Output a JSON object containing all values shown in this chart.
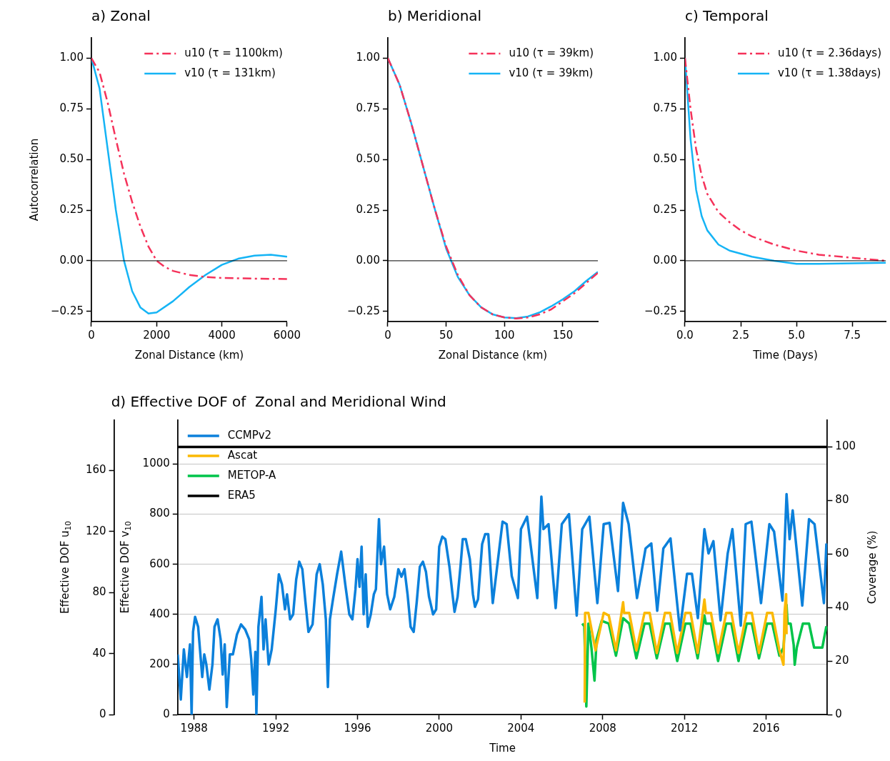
{
  "chart_data": [
    {
      "type": "line",
      "title": "a) Zonal",
      "xlabel": "Zonal Distance (km)",
      "ylabel": "Autocorrelation",
      "xlim": [
        0,
        6000
      ],
      "xticks": [
        0,
        2000,
        4000,
        6000
      ],
      "ylim": [
        -0.3,
        1.1
      ],
      "yticks": [
        {
          "value": -0.25,
          "label": "−0.25"
        },
        {
          "value": 0,
          "label": "0.00"
        },
        {
          "value": 0.25,
          "label": "0.25"
        },
        {
          "value": 0.5,
          "label": "0.50"
        },
        {
          "value": 0.75,
          "label": "0.75"
        },
        {
          "value": 1,
          "label": "1.00"
        }
      ],
      "legend": "top right",
      "marker": "none",
      "ref_lines": [
        {
          "axis": "y",
          "value": 0,
          "color": "#000000"
        }
      ],
      "series": [
        {
          "name": "u10 (τ = 1100km)",
          "color": "#f5325a",
          "line_style": "dashed",
          "x": [
            0,
            250,
            500,
            750,
            1000,
            1250,
            1500,
            1750,
            2000,
            2250,
            2500,
            3000,
            3500,
            4000,
            5000,
            6000
          ],
          "values": [
            1.0,
            0.93,
            0.78,
            0.6,
            0.43,
            0.29,
            0.17,
            0.07,
            0.0,
            -0.03,
            -0.05,
            -0.07,
            -0.08,
            -0.085,
            -0.088,
            -0.09
          ]
        },
        {
          "name": "v10 (τ = 131km)",
          "color": "#15b4f5",
          "line_style": "solid",
          "x": [
            0,
            250,
            500,
            750,
            1000,
            1250,
            1500,
            1750,
            2000,
            2500,
            3000,
            3500,
            4000,
            4500,
            5000,
            5500,
            6000
          ],
          "values": [
            1.0,
            0.85,
            0.55,
            0.25,
            0.0,
            -0.15,
            -0.23,
            -0.26,
            -0.255,
            -0.2,
            -0.13,
            -0.07,
            -0.02,
            0.01,
            0.025,
            0.03,
            0.02
          ]
        }
      ]
    },
    {
      "type": "line",
      "title": "b) Meridional",
      "xlabel": "Zonal Distance (km)",
      "xlim": [
        0,
        180
      ],
      "xticks": [
        0,
        50,
        100,
        150
      ],
      "ylim": [
        -0.3,
        1.1
      ],
      "yticks": [
        {
          "value": -0.25,
          "label": "−0.25"
        },
        {
          "value": 0,
          "label": "0.00"
        },
        {
          "value": 0.25,
          "label": "0.25"
        },
        {
          "value": 0.5,
          "label": "0.50"
        },
        {
          "value": 0.75,
          "label": "0.75"
        },
        {
          "value": 1,
          "label": "1.00"
        }
      ],
      "legend": "top right",
      "marker": "none",
      "ref_lines": [
        {
          "axis": "y",
          "value": 0,
          "color": "#000000"
        }
      ],
      "series": [
        {
          "name": "u10 (τ = 39km)",
          "color": "#f5325a",
          "line_style": "dashed",
          "x": [
            0,
            10,
            20,
            30,
            40,
            50,
            60,
            70,
            80,
            90,
            100,
            110,
            120,
            130,
            140,
            150,
            160,
            170,
            180
          ],
          "values": [
            1.0,
            0.87,
            0.68,
            0.47,
            0.26,
            0.07,
            -0.07,
            -0.17,
            -0.23,
            -0.265,
            -0.28,
            -0.285,
            -0.28,
            -0.265,
            -0.24,
            -0.2,
            -0.16,
            -0.11,
            -0.06
          ]
        },
        {
          "name": "v10 (τ = 39km)",
          "color": "#15b4f5",
          "line_style": "solid",
          "x": [
            0,
            10,
            20,
            30,
            40,
            50,
            60,
            70,
            80,
            90,
            100,
            110,
            120,
            130,
            140,
            150,
            160,
            170,
            180
          ],
          "values": [
            1.0,
            0.87,
            0.68,
            0.47,
            0.26,
            0.06,
            -0.08,
            -0.17,
            -0.23,
            -0.265,
            -0.28,
            -0.283,
            -0.275,
            -0.255,
            -0.225,
            -0.19,
            -0.15,
            -0.1,
            -0.055
          ]
        }
      ]
    },
    {
      "type": "line",
      "title": "c) Temporal",
      "xlabel": "Time (Days)",
      "xlim": [
        0,
        9
      ],
      "xticks": [
        {
          "value": 0,
          "label": "0.0"
        },
        {
          "value": 2.5,
          "label": "2.5"
        },
        {
          "value": 5,
          "label": "5.0"
        },
        {
          "value": 7.5,
          "label": "7.5"
        }
      ],
      "ylim": [
        -0.3,
        1.1
      ],
      "yticks": [
        {
          "value": -0.25,
          "label": "−0.25"
        },
        {
          "value": 0,
          "label": "0.00"
        },
        {
          "value": 0.25,
          "label": "0.25"
        },
        {
          "value": 0.5,
          "label": "0.50"
        },
        {
          "value": 0.75,
          "label": "0.75"
        },
        {
          "value": 1,
          "label": "1.00"
        }
      ],
      "legend": "top right",
      "marker": "none",
      "ref_lines": [
        {
          "axis": "y",
          "value": 0,
          "color": "#000000"
        }
      ],
      "series": [
        {
          "name": "u10 (τ = 2.36days)",
          "color": "#f5325a",
          "line_style": "dashed",
          "x": [
            0,
            0.25,
            0.5,
            0.75,
            1,
            1.5,
            2,
            2.5,
            3,
            4,
            5,
            6,
            7,
            8,
            9
          ],
          "values": [
            1.0,
            0.75,
            0.55,
            0.42,
            0.33,
            0.24,
            0.19,
            0.15,
            0.12,
            0.08,
            0.05,
            0.03,
            0.02,
            0.01,
            0.0
          ]
        },
        {
          "name": "v10 (τ = 1.38days)",
          "color": "#15b4f5",
          "line_style": "solid",
          "x": [
            0,
            0.25,
            0.5,
            0.75,
            1,
            1.5,
            2,
            3,
            4,
            5,
            6,
            9
          ],
          "values": [
            1.0,
            0.6,
            0.35,
            0.22,
            0.15,
            0.08,
            0.05,
            0.02,
            0.0,
            -0.015,
            -0.015,
            -0.01
          ]
        }
      ]
    },
    {
      "type": "line",
      "title": "d) Effective DOF of  Zonal and Meridional Wind",
      "xlabel": "Time",
      "ylabel": "Effective DOF v$_{10}$",
      "y2label": "Coverage (%)",
      "y3label": "Effective DOF u$_{10}$",
      "xlim": [
        1987.2,
        2019.0
      ],
      "xticks": [
        1988,
        1992,
        1996,
        2000,
        2004,
        2008,
        2012,
        2016
      ],
      "ylim": [
        0,
        1175
      ],
      "yticks": [
        0,
        200,
        400,
        600,
        800,
        1000
      ],
      "y2lim": [
        0,
        110
      ],
      "y2ticks": [
        0,
        20,
        40,
        60,
        80,
        100
      ],
      "y3lim": [
        0,
        193
      ],
      "y3ticks": [
        0,
        40,
        80,
        120,
        160
      ],
      "grid": "y",
      "legend": "top left",
      "marker": "none",
      "series": [
        {
          "name": "CCMPv2",
          "color": "#0b80db",
          "x": [
            1987.2,
            1987.35,
            1987.5,
            1987.65,
            1987.8,
            1987.88,
            1987.95,
            1988.05,
            1988.2,
            1988.3,
            1988.4,
            1988.5,
            1988.6,
            1988.75,
            1988.9,
            1989.0,
            1989.15,
            1989.3,
            1989.4,
            1989.5,
            1989.6,
            1989.75,
            1989.9,
            1990.1,
            1990.3,
            1990.5,
            1990.7,
            1990.8,
            1990.9,
            1991.0,
            1991.05,
            1991.15,
            1991.3,
            1991.4,
            1991.5,
            1991.65,
            1991.8,
            1992.0,
            1992.15,
            1992.3,
            1992.45,
            1992.55,
            1992.7,
            1992.85,
            1993.0,
            1993.15,
            1993.3,
            1993.45,
            1993.6,
            1993.8,
            1994.0,
            1994.15,
            1994.3,
            1994.45,
            1994.55,
            1994.65,
            1994.8,
            1995.0,
            1995.2,
            1995.4,
            1995.6,
            1995.75,
            1995.9,
            1996.0,
            1996.1,
            1996.2,
            1996.3,
            1996.4,
            1996.5,
            1996.65,
            1996.8,
            1996.9,
            1997.0,
            1997.05,
            1997.15,
            1997.3,
            1997.45,
            1997.6,
            1997.8,
            1998.0,
            1998.15,
            1998.3,
            1998.45,
            1998.6,
            1998.75,
            1998.9,
            1999.05,
            1999.2,
            1999.35,
            1999.5,
            1999.7,
            1999.85,
            2000.0,
            2000.15,
            2000.3,
            2000.5,
            2000.65,
            2000.75,
            2000.9,
            2001.05,
            2001.15,
            2001.3,
            2001.5,
            2001.65,
            2001.75,
            2001.9,
            2002.1,
            2002.25,
            2002.4,
            2002.62,
            2003.1,
            2003.3,
            2003.55,
            2003.85,
            2004.0,
            2004.3,
            2004.8,
            2005.0,
            2005.1,
            2005.35,
            2005.7,
            2006.0,
            2006.35,
            2006.73,
            2007.0,
            2007.35,
            2007.74,
            2008.05,
            2008.34,
            2008.75,
            2009.0,
            2009.27,
            2009.68,
            2010.1,
            2010.38,
            2010.67,
            2010.97,
            2011.32,
            2011.78,
            2012.13,
            2012.37,
            2012.66,
            2012.98,
            2013.18,
            2013.42,
            2013.77,
            2014.12,
            2014.35,
            2014.76,
            2015.0,
            2015.28,
            2015.75,
            2016.16,
            2016.39,
            2016.8,
            2017.0,
            2017.15,
            2017.3,
            2017.77,
            2018.1,
            2018.37,
            2018.83,
            2018.95
          ],
          "values": [
            240,
            60,
            260,
            150,
            280,
            0,
            330,
            390,
            350,
            250,
            150,
            240,
            200,
            100,
            200,
            350,
            380,
            300,
            160,
            280,
            30,
            240,
            240,
            320,
            360,
            340,
            300,
            220,
            80,
            250,
            0,
            350,
            470,
            260,
            380,
            200,
            260,
            420,
            560,
            520,
            420,
            480,
            380,
            400,
            540,
            610,
            580,
            450,
            330,
            360,
            560,
            600,
            520,
            380,
            110,
            380,
            460,
            560,
            650,
            520,
            400,
            380,
            500,
            620,
            510,
            670,
            400,
            560,
            350,
            400,
            480,
            500,
            690,
            780,
            600,
            670,
            480,
            420,
            470,
            580,
            550,
            580,
            480,
            350,
            330,
            450,
            590,
            610,
            570,
            470,
            400,
            420,
            670,
            710,
            700,
            590,
            480,
            410,
            470,
            600,
            700,
            700,
            620,
            480,
            430,
            460,
            680,
            720,
            720,
            445,
            770,
            760,
            553,
            465,
            740,
            790,
            465,
            870,
            740,
            760,
            425,
            760,
            800,
            395,
            740,
            790,
            445,
            760,
            765,
            493,
            845,
            760,
            465,
            663,
            683,
            414,
            663,
            703,
            336,
            562,
            562,
            385,
            740,
            643,
            692,
            376,
            643,
            740,
            355,
            760,
            770,
            445,
            760,
            730,
            455,
            880,
            700,
            815,
            435,
            780,
            760,
            445,
            683
          ]
        },
        {
          "name": "Ascat",
          "color": "#fbb904",
          "axis": "y2",
          "x": [
            2007.12,
            2007.14,
            2007.3,
            2007.65,
            2008.05,
            2008.3,
            2008.65,
            2009.0,
            2009.05,
            2009.3,
            2009.65,
            2010.05,
            2010.3,
            2010.65,
            2011.05,
            2011.3,
            2011.65,
            2012.05,
            2012.3,
            2012.65,
            2012.98,
            2013.05,
            2013.3,
            2013.65,
            2014.05,
            2014.3,
            2014.65,
            2015.05,
            2015.3,
            2015.65,
            2016.05,
            2016.3,
            2016.65,
            2016.85,
            2016.9,
            2016.98,
            2017.0
          ],
          "values": [
            4.5,
            38,
            38,
            24,
            38,
            37,
            24,
            42,
            38,
            38,
            24,
            38,
            38,
            23,
            38,
            38,
            23,
            38,
            38,
            23,
            43,
            38,
            38,
            23,
            38,
            38,
            23,
            38,
            38,
            23,
            38,
            38,
            24,
            18.6,
            38,
            45,
            30
          ]
        },
        {
          "name": "METOP-A",
          "color": "#00c44a",
          "axis": "y2",
          "x": [
            2007.0,
            2007.1,
            2007.2,
            2007.3,
            2007.45,
            2007.6,
            2007.7,
            2007.95,
            2008.3,
            2008.65,
            2009.0,
            2009.3,
            2009.65,
            2010.05,
            2010.3,
            2010.65,
            2011.05,
            2011.3,
            2011.65,
            2012.05,
            2012.3,
            2012.65,
            2012.98,
            2013.05,
            2013.3,
            2013.65,
            2014.05,
            2014.3,
            2014.65,
            2015.05,
            2015.3,
            2015.65,
            2016.05,
            2016.3,
            2016.65,
            2016.85,
            2017.0,
            2017.05,
            2017.2,
            2017.35,
            2017.4,
            2017.5,
            2017.8,
            2018.1,
            2018.35,
            2018.75,
            2018.95
          ],
          "values": [
            34,
            33,
            3,
            34,
            25,
            12.7,
            28,
            35,
            34,
            22,
            36,
            34,
            21,
            34,
            34,
            21,
            34,
            34,
            20,
            34,
            34,
            21,
            37,
            34,
            34,
            20,
            34,
            34,
            20,
            34,
            34,
            21,
            34,
            34,
            22,
            25,
            41,
            34,
            34,
            26,
            18.6,
            25,
            34,
            34,
            25,
            25,
            33
          ]
        },
        {
          "name": "ERA5",
          "color": "#000000",
          "axis": "y2",
          "x": [
            1987.2,
            2019.0
          ],
          "values": [
            100,
            100
          ]
        }
      ]
    }
  ]
}
